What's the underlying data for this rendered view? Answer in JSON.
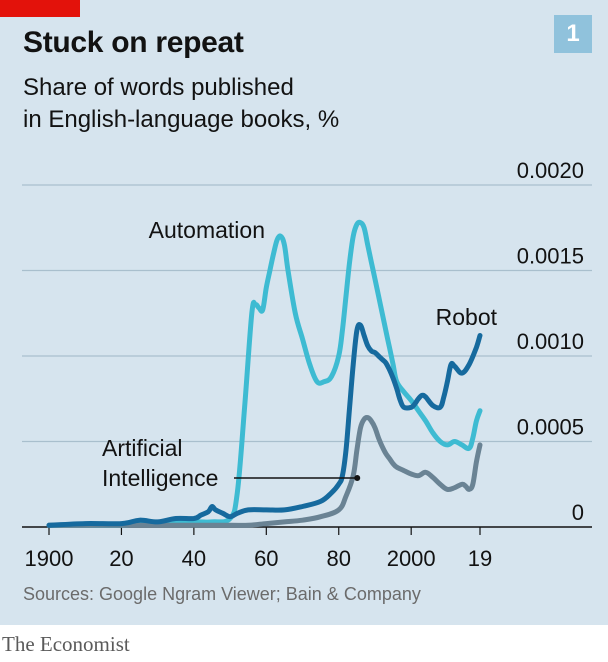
{
  "header": {
    "title": "Stuck on repeat",
    "subtitle_lines": [
      "Share of words published",
      "in English-language books, %"
    ],
    "badge": "1"
  },
  "footer": {
    "source": "Sources: Google Ngram Viewer; Bain & Company",
    "brand": "The Economist"
  },
  "colors": {
    "background": "#d6e4ee",
    "accent_red": "#e3120b",
    "badge": "#90c2dc",
    "gridline": "#a9bfcd",
    "automation": "#3ebbd2",
    "robot": "#166a9e",
    "artificial_intelligence": "#6a8394"
  },
  "chart_data": {
    "type": "line",
    "ylim": [
      0,
      0.002
    ],
    "y_ticks": [
      0,
      0.0005,
      0.001,
      0.0015,
      0.002
    ],
    "y_tick_labels": [
      "0",
      "0.0005",
      "0.0010",
      "0.0015",
      "0.0020"
    ],
    "xlim": [
      1900,
      2019
    ],
    "x_ticks": [
      1900,
      1920,
      1940,
      1960,
      1980,
      2000,
      2019
    ],
    "x_tick_labels": [
      "1900",
      "20",
      "40",
      "60",
      "80",
      "2000",
      "19"
    ],
    "grid": true,
    "series": [
      {
        "name": "Automation",
        "color": "#3ebbd2",
        "x": [
          1900,
          1910,
          1920,
          1930,
          1940,
          1945,
          1950,
          1952,
          1954,
          1956,
          1957,
          1958,
          1959,
          1960,
          1961,
          1962,
          1963,
          1964,
          1965,
          1966,
          1968,
          1970,
          1972,
          1974,
          1976,
          1978,
          1980,
          1981,
          1982,
          1983,
          1984,
          1985,
          1986,
          1987,
          1988,
          1989,
          1990,
          1991,
          1992,
          1993,
          1994,
          1995,
          1996,
          1998,
          2000,
          2002,
          2004,
          2006,
          2008,
          2010,
          2012,
          2014,
          2016,
          2017,
          2018,
          2019
        ],
        "y": [
          1e-05,
          1e-05,
          1e-05,
          2e-05,
          3e-05,
          3e-05,
          5e-05,
          0.0002,
          0.0007,
          0.00125,
          0.0013,
          0.00128,
          0.00127,
          0.0014,
          0.0015,
          0.0016,
          0.00168,
          0.0017,
          0.00165,
          0.0015,
          0.00125,
          0.0011,
          0.00095,
          0.00085,
          0.00085,
          0.00088,
          0.001,
          0.00115,
          0.00135,
          0.00155,
          0.0017,
          0.00177,
          0.00178,
          0.00175,
          0.00165,
          0.00155,
          0.00145,
          0.00135,
          0.00125,
          0.00115,
          0.00105,
          0.00095,
          0.00085,
          0.00079,
          0.00074,
          0.00068,
          0.00062,
          0.00055,
          0.0005,
          0.00048,
          0.0005,
          0.00048,
          0.00046,
          0.00052,
          0.00062,
          0.00068
        ]
      },
      {
        "name": "Robot",
        "color": "#166a9e",
        "x": [
          1900,
          1910,
          1920,
          1925,
          1930,
          1935,
          1940,
          1942,
          1944,
          1945,
          1946,
          1948,
          1950,
          1952,
          1955,
          1960,
          1965,
          1970,
          1975,
          1978,
          1980,
          1981,
          1982,
          1983,
          1984,
          1985,
          1986,
          1987,
          1988,
          1989,
          1990,
          1991,
          1992,
          1993,
          1994,
          1995,
          1996,
          1997,
          1998,
          2000,
          2001,
          2002,
          2003,
          2004,
          2006,
          2008,
          2009,
          2010,
          2011,
          2012,
          2014,
          2016,
          2018,
          2019
        ],
        "y": [
          1e-05,
          2e-05,
          2e-05,
          4e-05,
          3e-05,
          5e-05,
          5e-05,
          7e-05,
          9e-05,
          0.00012,
          0.0001,
          8e-05,
          6e-05,
          8e-05,
          0.0001,
          0.0001,
          0.0001,
          0.00012,
          0.00015,
          0.0002,
          0.00025,
          0.0003,
          0.00045,
          0.0007,
          0.00095,
          0.00115,
          0.00118,
          0.00112,
          0.00106,
          0.00103,
          0.00102,
          0.001,
          0.00098,
          0.00096,
          0.00092,
          0.00087,
          0.00081,
          0.00074,
          0.0007,
          0.0007,
          0.00072,
          0.00075,
          0.00077,
          0.00076,
          0.00071,
          0.0007,
          0.00076,
          0.00085,
          0.00095,
          0.00094,
          0.0009,
          0.00095,
          0.00105,
          0.00112
        ]
      },
      {
        "name": "Artificial Intelligence",
        "color": "#6a8394",
        "x": [
          1900,
          1920,
          1940,
          1950,
          1955,
          1960,
          1965,
          1970,
          1975,
          1980,
          1982,
          1984,
          1985,
          1986,
          1987,
          1988,
          1989,
          1990,
          1991,
          1992,
          1993,
          1994,
          1995,
          1996,
          1998,
          2000,
          2002,
          2004,
          2006,
          2008,
          2010,
          2012,
          2014,
          2015,
          2016,
          2017,
          2018,
          2019
        ],
        "y": [
          1e-05,
          1e-05,
          1e-05,
          1e-05,
          1e-05,
          2e-05,
          3e-05,
          4e-05,
          6e-05,
          0.0001,
          0.00018,
          0.0003,
          0.00045,
          0.00058,
          0.00063,
          0.00064,
          0.00062,
          0.00058,
          0.00052,
          0.00047,
          0.00043,
          0.0004,
          0.00037,
          0.00035,
          0.00033,
          0.00031,
          0.0003,
          0.00032,
          0.00029,
          0.00025,
          0.00022,
          0.00023,
          0.00025,
          0.00024,
          0.00022,
          0.00025,
          0.00038,
          0.00048
        ]
      }
    ],
    "annotations": [
      {
        "series": "Automation",
        "lines": [
          "Automation"
        ]
      },
      {
        "series": "Robot",
        "lines": [
          "Robot"
        ]
      },
      {
        "series": "Artificial Intelligence",
        "lines": [
          "Artificial",
          "Intelligence"
        ],
        "pointer_x": 1984
      }
    ]
  }
}
